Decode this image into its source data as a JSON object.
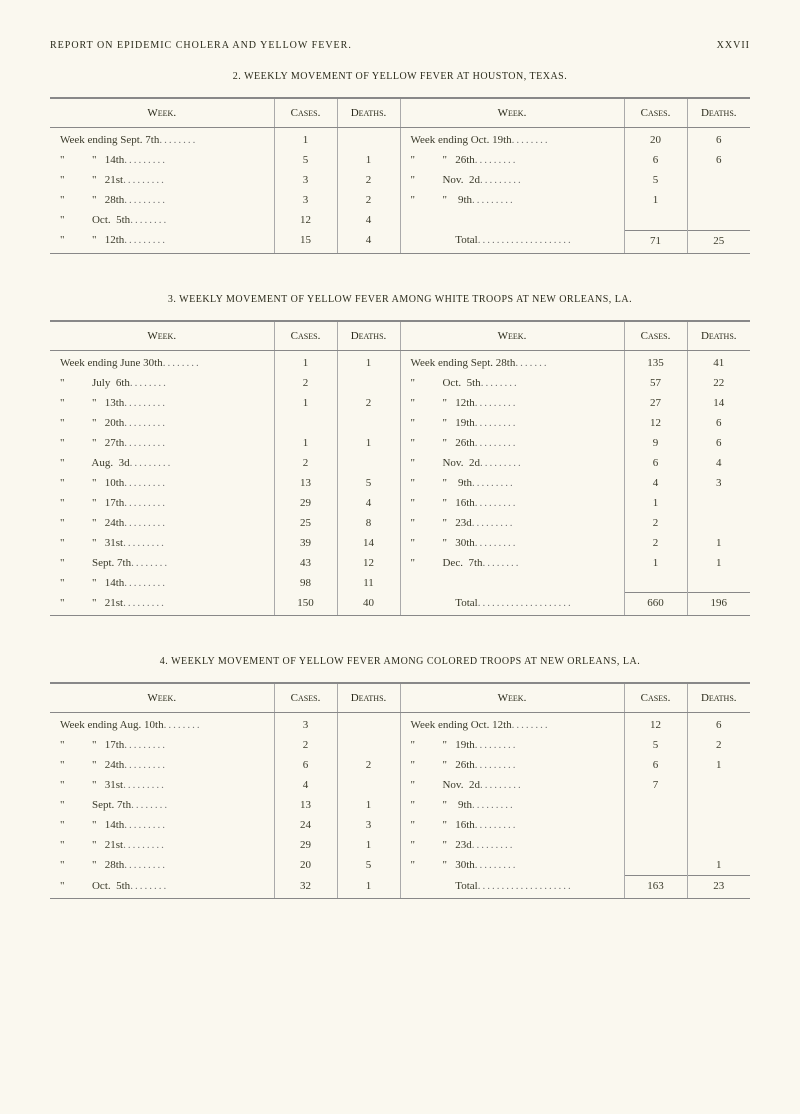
{
  "page_header_left": "REPORT ON EPIDEMIC CHOLERA AND YELLOW FEVER.",
  "page_header_right": "XXVII",
  "table2": {
    "title": "2. WEEKLY MOVEMENT OF YELLOW FEVER AT HOUSTON, TEXAS.",
    "col_week": "Week.",
    "col_cases": "Cases.",
    "col_deaths": "Deaths.",
    "left_rows": [
      {
        "label": "Week ending Sept. 7th",
        "cases": "1",
        "deaths": ""
      },
      {
        "label": "\"          \"   14th",
        "cases": "5",
        "deaths": "1"
      },
      {
        "label": "\"          \"   21st",
        "cases": "3",
        "deaths": "2"
      },
      {
        "label": "\"          \"   28th",
        "cases": "3",
        "deaths": "2"
      },
      {
        "label": "\"          Oct.  5th",
        "cases": "12",
        "deaths": "4"
      },
      {
        "label": "\"          \"   12th",
        "cases": "15",
        "deaths": "4"
      }
    ],
    "right_rows": [
      {
        "label": "Week ending Oct. 19th",
        "cases": "20",
        "deaths": "6"
      },
      {
        "label": "\"          \"   26th",
        "cases": "6",
        "deaths": "6"
      },
      {
        "label": "\"          Nov.  2d",
        "cases": "5",
        "deaths": ""
      },
      {
        "label": "\"          \"    9th",
        "cases": "1",
        "deaths": ""
      },
      {
        "label": "",
        "cases": "",
        "deaths": ""
      },
      {
        "label": "Total",
        "cases": "71",
        "deaths": "25"
      }
    ]
  },
  "table3": {
    "title": "3. WEEKLY MOVEMENT OF YELLOW FEVER AMONG WHITE TROOPS AT NEW ORLEANS, LA.",
    "col_week": "Week.",
    "col_cases": "Cases.",
    "col_deaths": "Deaths.",
    "left_rows": [
      {
        "label": "Week ending June 30th",
        "cases": "1",
        "deaths": "1"
      },
      {
        "label": "\"          July  6th",
        "cases": "2",
        "deaths": ""
      },
      {
        "label": "\"          \"   13th",
        "cases": "1",
        "deaths": "2"
      },
      {
        "label": "\"          \"   20th",
        "cases": "",
        "deaths": ""
      },
      {
        "label": "\"          \"   27th",
        "cases": "1",
        "deaths": "1"
      },
      {
        "label": "\"          Aug.  3d",
        "cases": "2",
        "deaths": ""
      },
      {
        "label": "\"          \"   10th",
        "cases": "13",
        "deaths": "5"
      },
      {
        "label": "\"          \"   17th",
        "cases": "29",
        "deaths": "4"
      },
      {
        "label": "\"          \"   24th",
        "cases": "25",
        "deaths": "8"
      },
      {
        "label": "\"          \"   31st",
        "cases": "39",
        "deaths": "14"
      },
      {
        "label": "\"          Sept. 7th",
        "cases": "43",
        "deaths": "12"
      },
      {
        "label": "\"          \"   14th",
        "cases": "98",
        "deaths": "11"
      },
      {
        "label": "\"          \"   21st",
        "cases": "150",
        "deaths": "40"
      }
    ],
    "right_rows": [
      {
        "label": "Week ending Sept. 28th",
        "cases": "135",
        "deaths": "41"
      },
      {
        "label": "\"          Oct.  5th",
        "cases": "57",
        "deaths": "22"
      },
      {
        "label": "\"          \"   12th",
        "cases": "27",
        "deaths": "14"
      },
      {
        "label": "\"          \"   19th",
        "cases": "12",
        "deaths": "6"
      },
      {
        "label": "\"          \"   26th",
        "cases": "9",
        "deaths": "6"
      },
      {
        "label": "\"          Nov.  2d",
        "cases": "6",
        "deaths": "4"
      },
      {
        "label": "\"          \"    9th",
        "cases": "4",
        "deaths": "3"
      },
      {
        "label": "\"          \"   16th",
        "cases": "1",
        "deaths": ""
      },
      {
        "label": "\"          \"   23d",
        "cases": "2",
        "deaths": ""
      },
      {
        "label": "\"          \"   30th",
        "cases": "2",
        "deaths": "1"
      },
      {
        "label": "\"          Dec.  7th",
        "cases": "1",
        "deaths": "1"
      },
      {
        "label": "",
        "cases": "",
        "deaths": ""
      },
      {
        "label": "Total",
        "cases": "660",
        "deaths": "196"
      }
    ]
  },
  "table4": {
    "title": "4. WEEKLY MOVEMENT OF YELLOW FEVER AMONG COLORED TROOPS AT NEW ORLEANS, LA.",
    "col_week": "Week.",
    "col_cases": "Cases.",
    "col_deaths": "Deaths.",
    "left_rows": [
      {
        "label": "Week ending Aug. 10th",
        "cases": "3",
        "deaths": ""
      },
      {
        "label": "\"          \"   17th",
        "cases": "2",
        "deaths": ""
      },
      {
        "label": "\"          \"   24th",
        "cases": "6",
        "deaths": "2"
      },
      {
        "label": "\"          \"   31st",
        "cases": "4",
        "deaths": ""
      },
      {
        "label": "\"          Sept. 7th",
        "cases": "13",
        "deaths": "1"
      },
      {
        "label": "\"          \"   14th",
        "cases": "24",
        "deaths": "3"
      },
      {
        "label": "\"          \"   21st",
        "cases": "29",
        "deaths": "1"
      },
      {
        "label": "\"          \"   28th",
        "cases": "20",
        "deaths": "5"
      },
      {
        "label": "\"          Oct.  5th",
        "cases": "32",
        "deaths": "1"
      }
    ],
    "right_rows": [
      {
        "label": "Week ending Oct. 12th",
        "cases": "12",
        "deaths": "6"
      },
      {
        "label": "\"          \"   19th",
        "cases": "5",
        "deaths": "2"
      },
      {
        "label": "\"          \"   26th",
        "cases": "6",
        "deaths": "1"
      },
      {
        "label": "\"          Nov.  2d",
        "cases": "7",
        "deaths": ""
      },
      {
        "label": "\"          \"    9th",
        "cases": "",
        "deaths": ""
      },
      {
        "label": "\"          \"   16th",
        "cases": "",
        "deaths": ""
      },
      {
        "label": "\"          \"   23d",
        "cases": "",
        "deaths": ""
      },
      {
        "label": "\"          \"   30th",
        "cases": "",
        "deaths": "1"
      },
      {
        "label": "Total",
        "cases": "163",
        "deaths": "23"
      }
    ]
  }
}
